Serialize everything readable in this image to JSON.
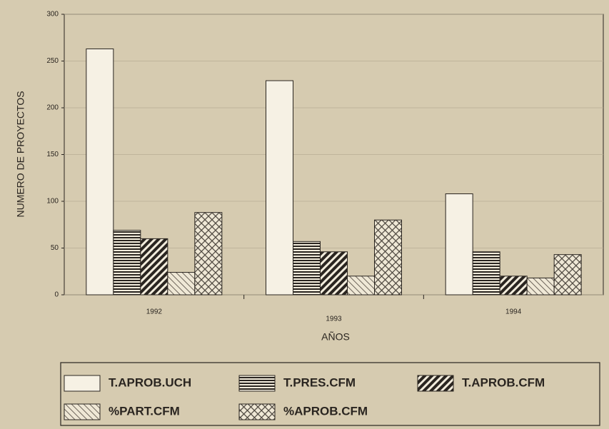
{
  "chart_data": {
    "type": "bar",
    "x_label": "AÑOS",
    "y_label": "NUMERO DE PROYECTOS",
    "categories": [
      "1992",
      "1993",
      "1994"
    ],
    "series": [
      {
        "name": "T.APROB.UCH",
        "color": "#f6f1e4",
        "pattern": "none",
        "values": [
          263,
          229,
          108
        ]
      },
      {
        "name": "T.PRES.CFM",
        "color": "#2a2520",
        "pattern": "horizontal",
        "values": [
          69,
          57,
          46
        ]
      },
      {
        "name": "T.APROB.CFM",
        "color": "#2a2520",
        "pattern": "diagonal-thick",
        "values": [
          60,
          46,
          20
        ]
      },
      {
        "name": "%PART.CFM",
        "color": "#6a6258",
        "pattern": "diagonal-thin",
        "values": [
          24,
          20,
          18
        ]
      },
      {
        "name": "%APROB.CFM",
        "color": "#4a443c",
        "pattern": "crosshatch",
        "values": [
          88,
          80,
          43
        ]
      }
    ],
    "ylim": [
      0,
      300
    ],
    "yticks": [
      0,
      50,
      100,
      150,
      200,
      250,
      300
    ],
    "grid": true
  }
}
